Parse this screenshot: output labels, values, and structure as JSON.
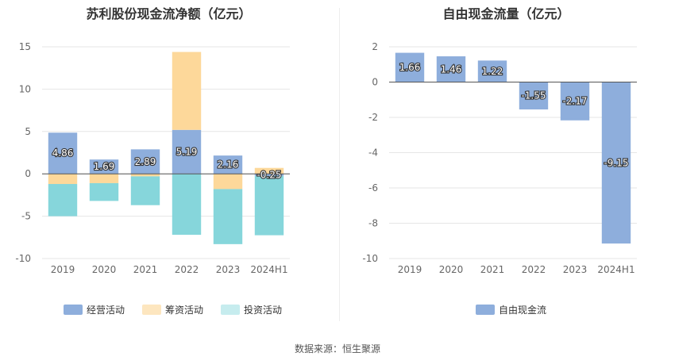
{
  "source_label": "数据来源：恒生聚源",
  "chart_data": [
    {
      "type": "bar",
      "stacked": true,
      "title": "苏利股份现金流净额（亿元）",
      "categories": [
        "2019",
        "2020",
        "2021",
        "2022",
        "2023",
        "2024H1"
      ],
      "ylim": [
        -10,
        15
      ],
      "yticks": [
        -10,
        -5,
        0,
        5,
        10,
        15
      ],
      "grid": true,
      "legend_position": "bottom",
      "series": [
        {
          "name": "经营活动",
          "color": "#8eaedc",
          "values": [
            4.86,
            1.69,
            2.89,
            5.19,
            2.16,
            -0.25
          ]
        },
        {
          "name": "筹资活动",
          "color": "#fdd89a",
          "values": [
            -1.2,
            -1.1,
            -0.3,
            9.2,
            -1.8,
            0.7
          ]
        },
        {
          "name": "投资活动",
          "color": "#86d6db",
          "values": [
            -3.8,
            -2.1,
            -3.4,
            -7.2,
            -6.5,
            -7.0
          ]
        }
      ],
      "data_labels": [
        "4.86",
        "1.69",
        "2.89",
        "5.19",
        "2.16",
        "-0.25"
      ]
    },
    {
      "type": "bar",
      "title": "自由现金流量（亿元）",
      "categories": [
        "2019",
        "2020",
        "2021",
        "2022",
        "2023",
        "2024H1"
      ],
      "ylim": [
        -10,
        2
      ],
      "yticks": [
        -10,
        -8,
        -6,
        -4,
        -2,
        0,
        2
      ],
      "grid": true,
      "legend_position": "bottom",
      "series": [
        {
          "name": "自由现金流",
          "color": "#8eaedc",
          "values": [
            1.66,
            1.46,
            1.22,
            -1.55,
            -2.17,
            -9.15
          ]
        }
      ],
      "data_labels": [
        "1.66",
        "1.46",
        "1.22",
        "-1.55",
        "-2.17",
        "-9.15"
      ]
    }
  ]
}
